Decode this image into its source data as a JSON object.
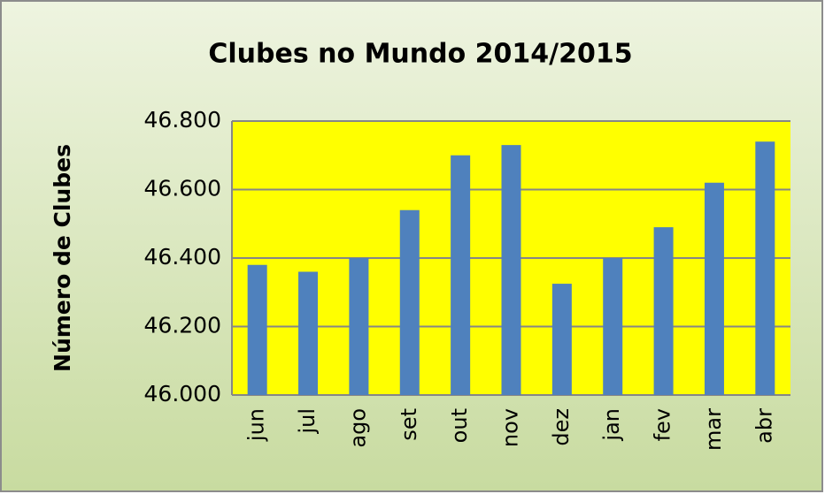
{
  "chart_data": {
    "type": "bar",
    "title": "Clubes no Mundo 2014/2015",
    "y_label": "Número de Clubes",
    "categories": [
      "jun",
      "jul",
      "ago",
      "set",
      "out",
      "nov",
      "dez",
      "jan",
      "fev",
      "mar",
      "abr"
    ],
    "values": [
      46380,
      46360,
      46400,
      46540,
      46700,
      46730,
      46325,
      46400,
      46490,
      46620,
      46740
    ],
    "color": "#4f81bd",
    "plot_background": "#ffff00",
    "ylim": [
      46000,
      46800
    ],
    "yticks": [
      {
        "value": 46000,
        "label": "46.000"
      },
      {
        "value": 46200,
        "label": "46.200"
      },
      {
        "value": 46400,
        "label": "46.400"
      },
      {
        "value": 46600,
        "label": "46.600"
      },
      {
        "value": 46800,
        "label": "46.800"
      }
    ],
    "grid": true
  }
}
